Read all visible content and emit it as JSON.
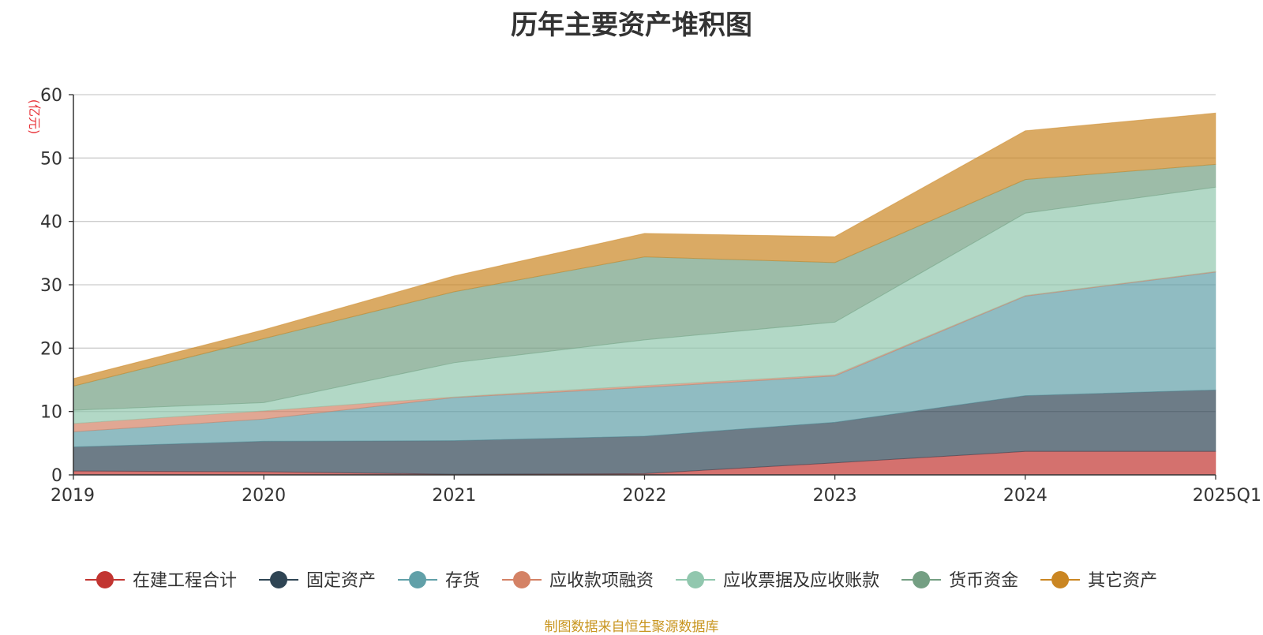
{
  "chart_data": {
    "type": "area",
    "stacked": true,
    "title": "历年主要资产堆积图",
    "unit": "(亿元)",
    "categories": [
      "2019",
      "2020",
      "2021",
      "2022",
      "2023",
      "2024",
      "2025Q1"
    ],
    "ylim": [
      0,
      60
    ],
    "yticks": [
      0,
      10,
      20,
      30,
      40,
      50,
      60
    ],
    "grid": true,
    "legend_position": "bottom",
    "series": [
      {
        "name": "在建工程合计",
        "color": "#c23531",
        "values": [
          0.6,
          0.5,
          0.1,
          0.2,
          1.9,
          3.7,
          3.7
        ]
      },
      {
        "name": "固定资产",
        "color": "#2f4554",
        "values": [
          3.8,
          4.8,
          5.3,
          5.9,
          6.4,
          8.8,
          9.7
        ]
      },
      {
        "name": "存货",
        "color": "#61a0a8",
        "values": [
          2.4,
          3.5,
          6.8,
          7.7,
          7.3,
          15.7,
          18.6
        ]
      },
      {
        "name": "应收款项融资",
        "color": "#d48265",
        "values": [
          1.3,
          1.3,
          0.1,
          0.3,
          0.2,
          0.1,
          0.1
        ]
      },
      {
        "name": "应收票据及应收账款",
        "color": "#91c7ae",
        "values": [
          2.1,
          1.3,
          5.4,
          7.2,
          8.3,
          13.0,
          13.3
        ]
      },
      {
        "name": "货币资金",
        "color": "#749f83",
        "values": [
          3.8,
          10.1,
          11.2,
          13.1,
          9.4,
          5.3,
          3.6
        ]
      },
      {
        "name": "其它资产",
        "color": "#ca8622",
        "values": [
          1.2,
          1.4,
          2.5,
          3.7,
          4.1,
          7.7,
          8.1
        ]
      }
    ]
  },
  "source": "制图数据来自恒生聚源数据库"
}
